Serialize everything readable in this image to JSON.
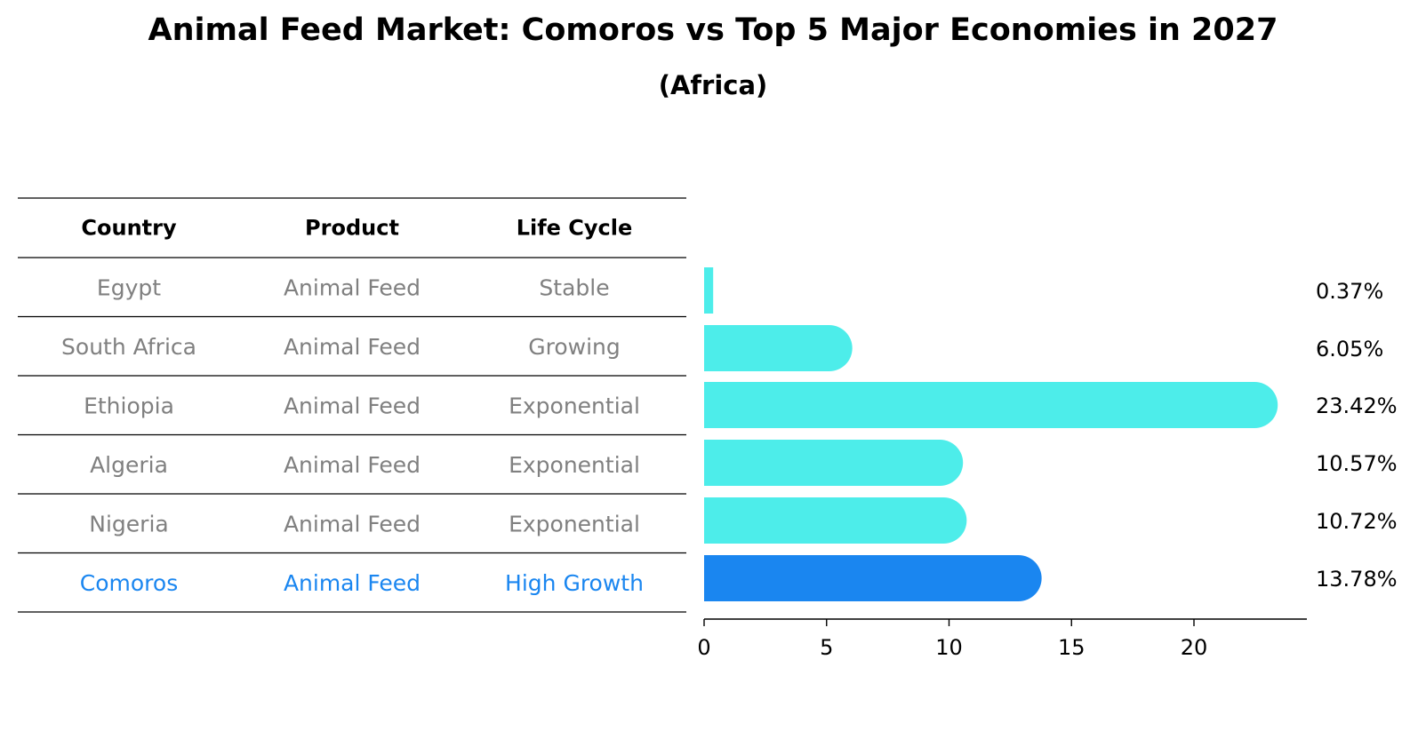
{
  "title": "Animal Feed Market: Comoros vs Top 5 Major Economies in 2027",
  "subtitle": "(Africa)",
  "colors": {
    "bar": "#4dedea",
    "highlight_bar": "#1a86f0",
    "highlight_text": "#1a86f0",
    "muted_text": "#808080"
  },
  "table": {
    "headers": [
      "Country",
      "Product",
      "Life Cycle"
    ],
    "rows": [
      {
        "country": "Egypt",
        "product": "Animal Feed",
        "life_cycle": "Stable",
        "highlight": false
      },
      {
        "country": "South Africa",
        "product": "Animal Feed",
        "life_cycle": "Growing",
        "highlight": false
      },
      {
        "country": "Ethiopia",
        "product": "Animal Feed",
        "life_cycle": "Exponential",
        "highlight": false
      },
      {
        "country": "Algeria",
        "product": "Animal Feed",
        "life_cycle": "Exponential",
        "highlight": false
      },
      {
        "country": "Nigeria",
        "product": "Animal Feed",
        "life_cycle": "Exponential",
        "highlight": false
      },
      {
        "country": "Comoros",
        "product": "Animal Feed",
        "life_cycle": "High Growth",
        "highlight": true
      }
    ]
  },
  "chart_data": {
    "type": "bar",
    "orientation": "horizontal",
    "categories": [
      "Egypt",
      "South Africa",
      "Ethiopia",
      "Algeria",
      "Nigeria",
      "Comoros"
    ],
    "values": [
      0.37,
      6.05,
      23.42,
      10.57,
      10.72,
      13.78
    ],
    "data_labels": [
      "0.37%",
      "6.05%",
      "23.42%",
      "10.57%",
      "10.72%",
      "13.78%"
    ],
    "highlight_category": "Comoros",
    "xlim": [
      0,
      24.5
    ],
    "xticks": [
      0,
      5,
      10,
      15,
      20
    ],
    "xlabel": "",
    "ylabel": "",
    "grid": false
  }
}
